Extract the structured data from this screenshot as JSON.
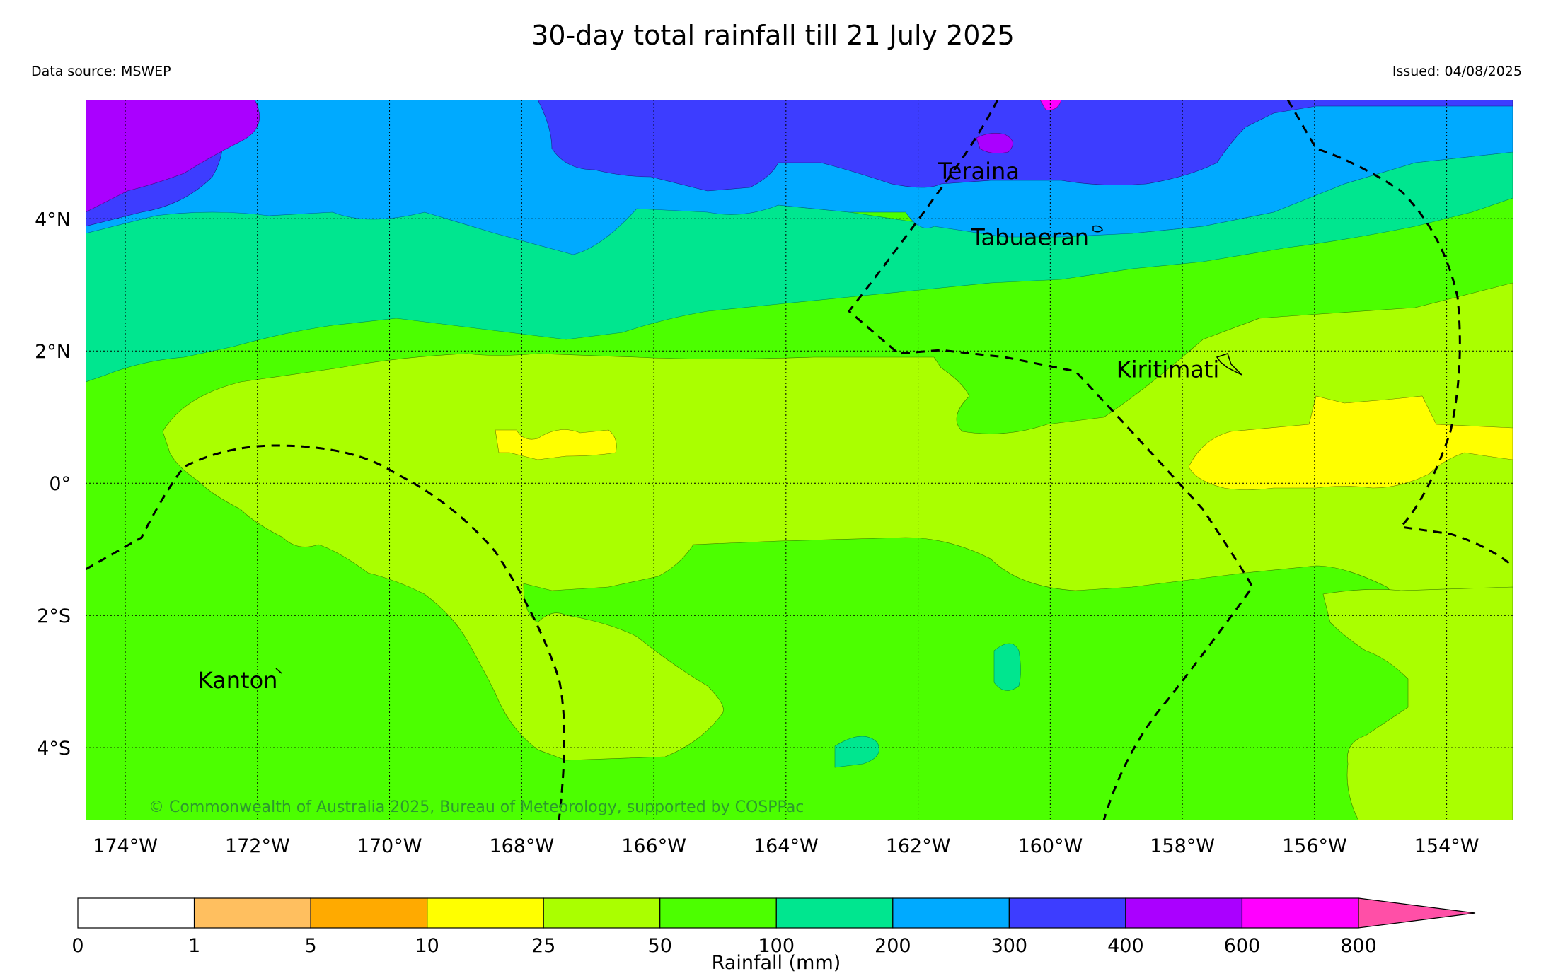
{
  "title": "30-day total rainfall till 21 July 2025",
  "data_source": "Data source: MSWEP",
  "issued": "Issued: 04/08/2025",
  "copyright": "© Commonwealth of Australia 2025, Bureau of Meteorology, supported by COSPPac",
  "map": {
    "lon_range": [
      -174.6,
      -153.0
    ],
    "lat_range": [
      -5.1,
      5.8
    ],
    "lon_ticks": [
      {
        "value": -174,
        "label": "174°W"
      },
      {
        "value": -172,
        "label": "172°W"
      },
      {
        "value": -170,
        "label": "170°W"
      },
      {
        "value": -168,
        "label": "168°W"
      },
      {
        "value": -166,
        "label": "166°W"
      },
      {
        "value": -164,
        "label": "164°W"
      },
      {
        "value": -162,
        "label": "162°W"
      },
      {
        "value": -160,
        "label": "160°W"
      },
      {
        "value": -158,
        "label": "158°W"
      },
      {
        "value": -156,
        "label": "156°W"
      },
      {
        "value": -154,
        "label": "154°W"
      }
    ],
    "lat_ticks": [
      {
        "value": 4,
        "label": "4°N"
      },
      {
        "value": 2,
        "label": "2°N"
      },
      {
        "value": 0,
        "label": "0°"
      },
      {
        "value": -2,
        "label": "2°S"
      },
      {
        "value": -4,
        "label": "4°S"
      }
    ],
    "places": [
      {
        "name": "Teraina",
        "lon": -161.7,
        "lat": 4.6
      },
      {
        "name": "Tabuaeran",
        "lon": -161.2,
        "lat": 3.6
      },
      {
        "name": "Kiritimati",
        "lon": -159.0,
        "lat": 1.6
      },
      {
        "name": "Kanton",
        "lon": -172.9,
        "lat": -3.1
      }
    ]
  },
  "legend": {
    "title": "Rainfall (mm)",
    "bins": [
      {
        "from": "0",
        "to": "1",
        "color": "#ffffff"
      },
      {
        "from": "1",
        "to": "5",
        "color": "#ffbf5f"
      },
      {
        "from": "5",
        "to": "10",
        "color": "#ffaa00"
      },
      {
        "from": "10",
        "to": "25",
        "color": "#ffff00"
      },
      {
        "from": "25",
        "to": "50",
        "color": "#aaff00"
      },
      {
        "from": "50",
        "to": "100",
        "color": "#4cff00"
      },
      {
        "from": "100",
        "to": "200",
        "color": "#00e68f"
      },
      {
        "from": "200",
        "to": "300",
        "color": "#00aaff"
      },
      {
        "from": "300",
        "to": "400",
        "color": "#3d3dff"
      },
      {
        "from": "400",
        "to": "600",
        "color": "#aa00ff"
      },
      {
        "from": "600",
        "to": "800",
        "color": "#ff00ff"
      }
    ],
    "labels": [
      "0",
      "1",
      "5",
      "10",
      "25",
      "50",
      "100",
      "200",
      "300",
      "400",
      "600",
      "800"
    ],
    "extend_color": "#ff4fa7"
  }
}
